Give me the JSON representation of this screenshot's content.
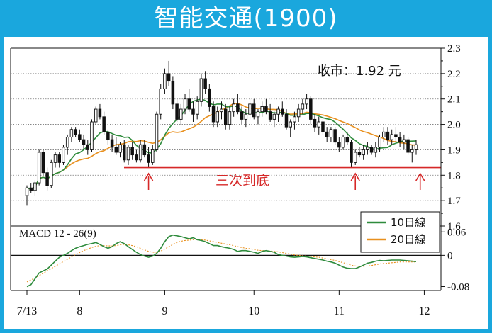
{
  "title": "智能交通(1900)",
  "chart_data": {
    "type": "candlestick",
    "price_label": "收市：1.92 元",
    "annotation": "三次到底",
    "support_level": 1.83,
    "ylim": [
      1.6,
      2.3
    ],
    "y_ticks": [
      "2.3",
      "2.2",
      "2.1",
      "2.0",
      "1.9",
      "1.8",
      "1.7",
      "1.6"
    ],
    "x_ticks": [
      {
        "label": "7/13",
        "i": 0
      },
      {
        "label": "8",
        "i": 13
      },
      {
        "label": "9",
        "i": 34
      },
      {
        "label": "10",
        "i": 56
      },
      {
        "label": "11",
        "i": 77
      },
      {
        "label": "12",
        "i": 98
      }
    ],
    "arrows_at": [
      30,
      81,
      97
    ],
    "legend": [
      {
        "name": "10日線",
        "color": "#2e8b3c"
      },
      {
        "name": "20日線",
        "color": "#e8901e"
      }
    ],
    "candles": [
      [
        1.72,
        1.76,
        1.68,
        1.75
      ],
      [
        1.75,
        1.77,
        1.73,
        1.74
      ],
      [
        1.74,
        1.78,
        1.72,
        1.77
      ],
      [
        1.77,
        1.9,
        1.76,
        1.89
      ],
      [
        1.89,
        1.9,
        1.8,
        1.81
      ],
      [
        1.81,
        1.83,
        1.74,
        1.76
      ],
      [
        1.76,
        1.86,
        1.75,
        1.85
      ],
      [
        1.85,
        1.89,
        1.83,
        1.88
      ],
      [
        1.88,
        1.89,
        1.83,
        1.85
      ],
      [
        1.85,
        1.92,
        1.84,
        1.91
      ],
      [
        1.91,
        1.96,
        1.88,
        1.95
      ],
      [
        1.95,
        1.99,
        1.93,
        1.98
      ],
      [
        1.98,
        1.99,
        1.95,
        1.96
      ],
      [
        1.96,
        1.98,
        1.93,
        1.94
      ],
      [
        1.94,
        1.96,
        1.9,
        1.92
      ],
      [
        1.92,
        1.94,
        1.88,
        1.9
      ],
      [
        1.9,
        2.02,
        1.89,
        2.01
      ],
      [
        2.01,
        2.07,
        2.0,
        2.06
      ],
      [
        2.06,
        2.08,
        2.02,
        2.03
      ],
      [
        2.03,
        2.05,
        1.96,
        1.97
      ],
      [
        1.97,
        1.98,
        1.92,
        1.94
      ],
      [
        1.94,
        1.96,
        1.89,
        1.91
      ],
      [
        1.91,
        1.95,
        1.88,
        1.89
      ],
      [
        1.89,
        1.93,
        1.87,
        1.92
      ],
      [
        1.92,
        1.94,
        1.85,
        1.86
      ],
      [
        1.86,
        1.92,
        1.84,
        1.91
      ],
      [
        1.91,
        1.93,
        1.86,
        1.88
      ],
      [
        1.88,
        1.9,
        1.85,
        1.86
      ],
      [
        1.86,
        1.94,
        1.85,
        1.92
      ],
      [
        1.92,
        1.94,
        1.87,
        1.88
      ],
      [
        1.88,
        1.91,
        1.83,
        1.85
      ],
      [
        1.85,
        1.92,
        1.84,
        1.9
      ],
      [
        1.9,
        2.05,
        1.89,
        2.04
      ],
      [
        2.04,
        2.16,
        2.02,
        2.14
      ],
      [
        2.14,
        2.22,
        2.12,
        2.2
      ],
      [
        2.2,
        2.25,
        2.15,
        2.17
      ],
      [
        2.17,
        2.19,
        2.06,
        2.08
      ],
      [
        2.08,
        2.1,
        2.01,
        2.02
      ],
      [
        2.02,
        2.08,
        2.0,
        2.06
      ],
      [
        2.06,
        2.12,
        2.04,
        2.1
      ],
      [
        2.1,
        2.14,
        2.05,
        2.06
      ],
      [
        2.06,
        2.09,
        2.01,
        2.04
      ],
      [
        2.04,
        2.11,
        2.02,
        2.09
      ],
      [
        2.09,
        2.2,
        2.07,
        2.18
      ],
      [
        2.18,
        2.21,
        2.12,
        2.14
      ],
      [
        2.14,
        2.16,
        2.05,
        2.07
      ],
      [
        2.07,
        2.09,
        1.99,
        2.01
      ],
      [
        2.01,
        2.07,
        1.99,
        2.05
      ],
      [
        2.05,
        2.09,
        2.02,
        2.06
      ],
      [
        2.06,
        2.08,
        1.98,
        2.0
      ],
      [
        2.0,
        2.07,
        1.98,
        2.05
      ],
      [
        2.05,
        2.1,
        2.03,
        2.08
      ],
      [
        2.08,
        2.12,
        2.04,
        2.05
      ],
      [
        2.05,
        2.07,
        2.0,
        2.02
      ],
      [
        2.02,
        2.06,
        1.99,
        2.04
      ],
      [
        2.04,
        2.1,
        2.02,
        2.08
      ],
      [
        2.08,
        2.1,
        2.02,
        2.03
      ],
      [
        2.03,
        2.06,
        2.0,
        2.05
      ],
      [
        2.05,
        2.09,
        2.03,
        2.07
      ],
      [
        2.07,
        2.1,
        2.04,
        2.05
      ],
      [
        2.05,
        2.08,
        2.01,
        2.02
      ],
      [
        2.02,
        2.05,
        1.99,
        2.04
      ],
      [
        2.04,
        2.07,
        2.01,
        2.06
      ],
      [
        2.06,
        2.09,
        2.03,
        2.04
      ],
      [
        2.04,
        2.06,
        1.98,
        1.99
      ],
      [
        1.99,
        2.02,
        1.95,
        2.01
      ],
      [
        2.01,
        2.05,
        1.98,
        2.03
      ],
      [
        2.03,
        2.08,
        2.01,
        2.06
      ],
      [
        2.06,
        2.1,
        2.04,
        2.08
      ],
      [
        2.08,
        2.12,
        2.06,
        2.1
      ],
      [
        2.1,
        2.11,
        2.0,
        2.02
      ],
      [
        2.02,
        2.04,
        1.97,
        1.99
      ],
      [
        1.99,
        2.03,
        1.96,
        2.01
      ],
      [
        2.01,
        2.04,
        1.96,
        1.97
      ],
      [
        1.97,
        1.99,
        1.93,
        1.95
      ],
      [
        1.95,
        1.99,
        1.93,
        1.98
      ],
      [
        1.98,
        1.99,
        1.92,
        1.93
      ],
      [
        1.93,
        1.95,
        1.89,
        1.91
      ],
      [
        1.91,
        1.96,
        1.9,
        1.95
      ],
      [
        1.95,
        1.97,
        1.92,
        1.93
      ],
      [
        1.93,
        1.94,
        1.83,
        1.85
      ],
      [
        1.85,
        1.9,
        1.84,
        1.89
      ],
      [
        1.89,
        1.91,
        1.87,
        1.88
      ],
      [
        1.88,
        1.92,
        1.86,
        1.9
      ],
      [
        1.9,
        1.93,
        1.88,
        1.91
      ],
      [
        1.91,
        1.92,
        1.88,
        1.89
      ],
      [
        1.89,
        1.93,
        1.87,
        1.91
      ],
      [
        1.91,
        1.96,
        1.89,
        1.95
      ],
      [
        1.95,
        1.99,
        1.93,
        1.97
      ],
      [
        1.97,
        1.99,
        1.92,
        1.94
      ],
      [
        1.94,
        1.98,
        1.92,
        1.96
      ],
      [
        1.96,
        1.99,
        1.93,
        1.95
      ],
      [
        1.95,
        1.97,
        1.91,
        1.93
      ],
      [
        1.93,
        1.96,
        1.9,
        1.94
      ],
      [
        1.94,
        1.95,
        1.88,
        1.89
      ],
      [
        1.89,
        1.92,
        1.85,
        1.9
      ],
      [
        1.9,
        1.94,
        1.88,
        1.92
      ]
    ],
    "macd_label": "MACD 12 - 26(9)",
    "macd_ylim": [
      -0.09,
      0.075
    ],
    "macd_ticks": [
      "0.06",
      "0",
      "-0.08"
    ],
    "macd_main": [
      -0.08,
      -0.075,
      -0.06,
      -0.045,
      -0.04,
      -0.035,
      -0.025,
      -0.015,
      -0.005,
      0.0,
      0.005,
      0.012,
      0.018,
      0.022,
      0.025,
      0.028,
      0.03,
      0.033,
      0.028,
      0.022,
      0.018,
      0.022,
      0.03,
      0.035,
      0.03,
      0.022,
      0.015,
      0.008,
      0.002,
      -0.002,
      -0.005,
      -0.002,
      0.005,
      0.018,
      0.035,
      0.048,
      0.052,
      0.05,
      0.048,
      0.045,
      0.042,
      0.045,
      0.04,
      0.038,
      0.035,
      0.03,
      0.025,
      0.025,
      0.022,
      0.02,
      0.018,
      0.015,
      0.01,
      0.012,
      0.012,
      0.01,
      0.008,
      0.005,
      0.01,
      0.012,
      0.01,
      0.008,
      0.002,
      0.0,
      -0.002,
      -0.004,
      -0.005,
      -0.004,
      -0.003,
      -0.004,
      -0.006,
      -0.008,
      -0.01,
      -0.012,
      -0.015,
      -0.017,
      -0.02,
      -0.025,
      -0.03,
      -0.033,
      -0.034,
      -0.034,
      -0.03,
      -0.025,
      -0.02,
      -0.018,
      -0.015,
      -0.013,
      -0.014,
      -0.013,
      -0.012,
      -0.012,
      -0.012,
      -0.013,
      -0.014,
      -0.015,
      -0.016
    ],
    "macd_signal": [
      -0.068,
      -0.063,
      -0.058,
      -0.052,
      -0.046,
      -0.04,
      -0.034,
      -0.028,
      -0.022,
      -0.016,
      -0.01,
      -0.004,
      0.002,
      0.007,
      0.012,
      0.016,
      0.02,
      0.023,
      0.025,
      0.025,
      0.024,
      0.024,
      0.025,
      0.027,
      0.028,
      0.027,
      0.025,
      0.022,
      0.018,
      0.014,
      0.01,
      0.008,
      0.008,
      0.011,
      0.016,
      0.022,
      0.028,
      0.033,
      0.036,
      0.038,
      0.039,
      0.04,
      0.04,
      0.04,
      0.039,
      0.037,
      0.035,
      0.033,
      0.031,
      0.029,
      0.027,
      0.025,
      0.022,
      0.02,
      0.018,
      0.017,
      0.015,
      0.013,
      0.012,
      0.012,
      0.011,
      0.01,
      0.009,
      0.007,
      0.005,
      0.003,
      0.001,
      0.0,
      -0.001,
      -0.002,
      -0.003,
      -0.004,
      -0.005,
      -0.007,
      -0.009,
      -0.011,
      -0.013,
      -0.016,
      -0.019,
      -0.022,
      -0.025,
      -0.027,
      -0.028,
      -0.028,
      -0.027,
      -0.026,
      -0.024,
      -0.022,
      -0.021,
      -0.02,
      -0.019,
      -0.018,
      -0.017,
      -0.017,
      -0.017,
      -0.017,
      -0.017
    ]
  }
}
